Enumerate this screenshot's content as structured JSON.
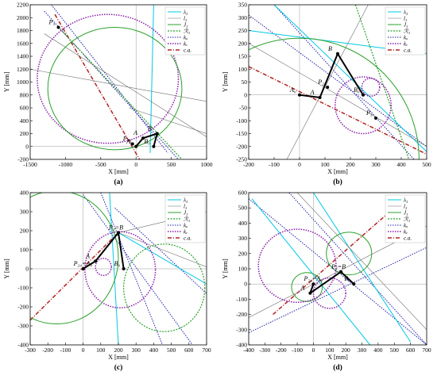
{
  "colors": {
    "lambda3": "#00c8e6",
    "l3": "#6e6e6e",
    "J3": "#2ca02c",
    "R3": "#2ca02c",
    "ku": "#2222aa",
    "kv": "#8b1fa9",
    "ca": "#b22222",
    "link": "#000000"
  },
  "legend_labels": {
    "lambda3": "λ₃",
    "l3": "l₃",
    "J3": "J₃",
    "R3": "ℛ₃",
    "ku": "kᵤ",
    "kv": "kᵥ",
    "ca": "c.a."
  },
  "chart_data": [
    {
      "id": "a",
      "type": "line",
      "caption": "(a)",
      "xlabel": "X [mm]",
      "ylabel": "Y [mm]",
      "xlim": [
        -1500,
        1000
      ],
      "ylim": [
        -200,
        2200
      ],
      "xticks": [
        -1500,
        -1000,
        -500,
        0,
        500,
        1000
      ],
      "yticks": [
        -200,
        0,
        200,
        400,
        600,
        800,
        1000,
        1200,
        1400,
        1600,
        1800,
        2000,
        2200
      ],
      "grid": false,
      "legend": "top-right",
      "points": [
        {
          "label": "P₃",
          "x": -1100,
          "y": 1850
        },
        {
          "label": "P₂₄",
          "x": -50,
          "y": 40
        },
        {
          "label": "A",
          "x": 100,
          "y": 130
        },
        {
          "label": "B",
          "x": 300,
          "y": 200
        },
        {
          "label": "A₀",
          "x": 0,
          "y": 0
        },
        {
          "label": "B₀",
          "x": 250,
          "y": 0
        }
      ],
      "circles": [
        {
          "kind": "kv",
          "cx": -400,
          "cy": 1050,
          "r": 1000
        },
        {
          "kind": "J3",
          "cx": -300,
          "cy": 900,
          "r": 950
        }
      ],
      "lines": [
        {
          "kind": "ca",
          "p1": [
            -1150,
            2050
          ],
          "p2": [
            50,
            -200
          ]
        },
        {
          "kind": "ku",
          "p1": [
            -1300,
            2100
          ],
          "p2": [
            600,
            -200
          ]
        },
        {
          "kind": "ku",
          "p1": [
            -1200,
            2200
          ],
          "p2": [
            450,
            -100
          ]
        },
        {
          "kind": "R3",
          "p1": [
            -1100,
            1850
          ],
          "p2": [
            650,
            -200
          ]
        },
        {
          "kind": "lambda3",
          "p1": [
            250,
            2200
          ],
          "p2": [
            200,
            -100
          ]
        },
        {
          "kind": "l3",
          "p1": [
            -1500,
            1200
          ],
          "p2": [
            1000,
            700
          ]
        },
        {
          "kind": "l3",
          "p1": [
            -1300,
            1750
          ],
          "p2": [
            1000,
            150
          ]
        },
        {
          "kind": "l3",
          "p1": [
            -100,
            600
          ],
          "p2": [
            1000,
            200
          ]
        }
      ],
      "links": [
        [
          [
            0,
            0
          ],
          [
            100,
            130
          ]
        ],
        [
          [
            100,
            130
          ],
          [
            300,
            200
          ]
        ],
        [
          [
            300,
            200
          ],
          [
            250,
            0
          ]
        ]
      ]
    },
    {
      "id": "b",
      "type": "line",
      "caption": "(b)",
      "xlabel": "X [mm]",
      "ylabel": "Y [mm]",
      "xlim": [
        -200,
        500
      ],
      "ylim": [
        -250,
        350
      ],
      "xticks": [
        -200,
        -100,
        0,
        100,
        200,
        300,
        400,
        500
      ],
      "yticks": [
        -250,
        -200,
        -150,
        -100,
        -50,
        0,
        50,
        100,
        150,
        200,
        250,
        300,
        350
      ],
      "grid": false,
      "legend": "top-right",
      "points": [
        {
          "label": "B",
          "x": 150,
          "y": 160
        },
        {
          "label": "P₂₄",
          "x": 110,
          "y": 30
        },
        {
          "label": "A",
          "x": 80,
          "y": -10
        },
        {
          "label": "A₀",
          "x": 0,
          "y": 0
        },
        {
          "label": "B₀",
          "x": 250,
          "y": 0
        },
        {
          "label": "P₃",
          "x": 300,
          "y": -90
        }
      ],
      "circles": [
        {
          "kind": "kv",
          "cx": 250,
          "cy": -40,
          "r": 110
        },
        {
          "kind": "kv",
          "cx": 280,
          "cy": 30,
          "r": 35
        },
        {
          "kind": "J3",
          "cx": 0,
          "cy": -250,
          "r": 470
        }
      ],
      "lines": [
        {
          "kind": "ca",
          "p1": [
            -200,
            110
          ],
          "p2": [
            500,
            -230
          ]
        },
        {
          "kind": "ku",
          "p1": [
            -200,
            310
          ],
          "p2": [
            500,
            -200
          ]
        },
        {
          "kind": "ku",
          "p1": [
            -100,
            350
          ],
          "p2": [
            450,
            -250
          ]
        },
        {
          "kind": "R3",
          "p1": [
            220,
            350
          ],
          "p2": [
            430,
            -250
          ]
        },
        {
          "kind": "lambda3",
          "p1": [
            -100,
            350
          ],
          "p2": [
            500,
            -220
          ]
        },
        {
          "kind": "lambda3",
          "p1": [
            -200,
            250
          ],
          "p2": [
            500,
            160
          ]
        },
        {
          "kind": "l3",
          "p1": [
            -50,
            -250
          ],
          "p2": [
            270,
            350
          ]
        },
        {
          "kind": "l3",
          "p1": [
            -200,
            200
          ],
          "p2": [
            500,
            -200
          ]
        }
      ],
      "links": [
        [
          [
            0,
            0
          ],
          [
            80,
            -10
          ]
        ],
        [
          [
            80,
            -10
          ],
          [
            150,
            160
          ]
        ],
        [
          [
            150,
            160
          ],
          [
            250,
            0
          ]
        ]
      ]
    },
    {
      "id": "c",
      "type": "line",
      "caption": "(c)",
      "xlabel": "X [mm]",
      "ylabel": "Y [mm]",
      "xlim": [
        -300,
        700
      ],
      "ylim": [
        -400,
        400
      ],
      "xticks": [
        -300,
        -200,
        -100,
        0,
        100,
        200,
        300,
        400,
        500,
        600,
        700
      ],
      "yticks": [
        -400,
        -300,
        -200,
        -100,
        0,
        100,
        200,
        300,
        400
      ],
      "grid": false,
      "legend": "top-right",
      "points": [
        {
          "label": "P₃=B",
          "x": 200,
          "y": 190
        },
        {
          "label": "P₂₄=A₀",
          "x": 0,
          "y": 0
        },
        {
          "label": "A",
          "x": 70,
          "y": 40
        },
        {
          "label": "B₀",
          "x": 230,
          "y": 0
        }
      ],
      "circles": [
        {
          "kind": "kv",
          "cx": 210,
          "cy": -5,
          "r": 200
        },
        {
          "kind": "kv",
          "cx": 115,
          "cy": 10,
          "r": 45
        },
        {
          "kind": "J3",
          "cx": -150,
          "cy": 60,
          "r": 350
        },
        {
          "kind": "R3",
          "cx": 460,
          "cy": -100,
          "r": 230
        }
      ],
      "lines": [
        {
          "kind": "ca",
          "p1": [
            -300,
            -270
          ],
          "p2": [
            210,
            200
          ]
        },
        {
          "kind": "ku",
          "p1": [
            100,
            400
          ],
          "p2": [
            450,
            -400
          ]
        },
        {
          "kind": "ku",
          "p1": [
            0,
            390
          ],
          "p2": [
            620,
            -400
          ]
        },
        {
          "kind": "ku",
          "p1": [
            180,
            320
          ],
          "p2": [
            700,
            -130
          ]
        },
        {
          "kind": "lambda3",
          "p1": [
            150,
            400
          ],
          "p2": [
            200,
            -400
          ]
        },
        {
          "kind": "lambda3",
          "p1": [
            200,
            190
          ],
          "p2": [
            700,
            -80
          ]
        },
        {
          "kind": "l3",
          "p1": [
            200,
            190
          ],
          "p2": [
            700,
            10
          ]
        },
        {
          "kind": "l3",
          "p1": [
            200,
            190
          ],
          "p2": [
            700,
            300
          ]
        }
      ],
      "links": [
        [
          [
            0,
            0
          ],
          [
            70,
            40
          ]
        ],
        [
          [
            70,
            40
          ],
          [
            200,
            190
          ]
        ],
        [
          [
            200,
            190
          ],
          [
            230,
            0
          ]
        ]
      ]
    },
    {
      "id": "d",
      "type": "line",
      "caption": "(d)",
      "xlabel": "X [mm]",
      "ylabel": "Y [mm]",
      "xlim": [
        -400,
        700
      ],
      "ylim": [
        -400,
        600
      ],
      "xticks": [
        -400,
        -300,
        -200,
        -100,
        0,
        100,
        200,
        300,
        400,
        500,
        600,
        700
      ],
      "yticks": [
        -400,
        -300,
        -200,
        -100,
        0,
        100,
        200,
        300,
        400,
        500,
        600
      ],
      "grid": false,
      "legend": "top-right",
      "points": [
        {
          "label": "P₃=B",
          "x": 170,
          "y": 80
        },
        {
          "label": "P₂₄=A₀",
          "x": 0,
          "y": 0
        },
        {
          "label": "A",
          "x": -20,
          "y": -60
        },
        {
          "label": "B₀",
          "x": 250,
          "y": 0
        }
      ],
      "circles": [
        {
          "kind": "J3",
          "cx": 220,
          "cy": 200,
          "r": 140
        },
        {
          "kind": "J3",
          "cx": -40,
          "cy": -20,
          "r": 95
        },
        {
          "kind": "kv",
          "cx": -100,
          "cy": 120,
          "r": 240
        },
        {
          "kind": "kv",
          "cx": 100,
          "cy": -60,
          "r": 100
        }
      ],
      "lines": [
        {
          "kind": "ca",
          "p1": [
            -250,
            -200
          ],
          "p2": [
            520,
            520
          ]
        },
        {
          "kind": "ku",
          "p1": [
            -400,
            560
          ],
          "p2": [
            700,
            -400
          ]
        },
        {
          "kind": "ku",
          "p1": [
            -400,
            -320
          ],
          "p2": [
            700,
            240
          ]
        },
        {
          "kind": "ku",
          "p1": [
            -150,
            600
          ],
          "p2": [
            700,
            -400
          ]
        },
        {
          "kind": "lambda3",
          "p1": [
            -380,
            560
          ],
          "p2": [
            350,
            -400
          ]
        },
        {
          "kind": "lambda3",
          "p1": [
            0,
            600
          ],
          "p2": [
            600,
            -380
          ]
        },
        {
          "kind": "l3",
          "p1": [
            -400,
            -220
          ],
          "p2": [
            700,
            380
          ]
        },
        {
          "kind": "l3",
          "p1": [
            -100,
            600
          ],
          "p2": [
            700,
            -300
          ]
        }
      ],
      "links": [
        [
          [
            0,
            0
          ],
          [
            -20,
            -60
          ]
        ],
        [
          [
            -20,
            -60
          ],
          [
            170,
            80
          ]
        ],
        [
          [
            170,
            80
          ],
          [
            250,
            0
          ]
        ]
      ]
    }
  ]
}
